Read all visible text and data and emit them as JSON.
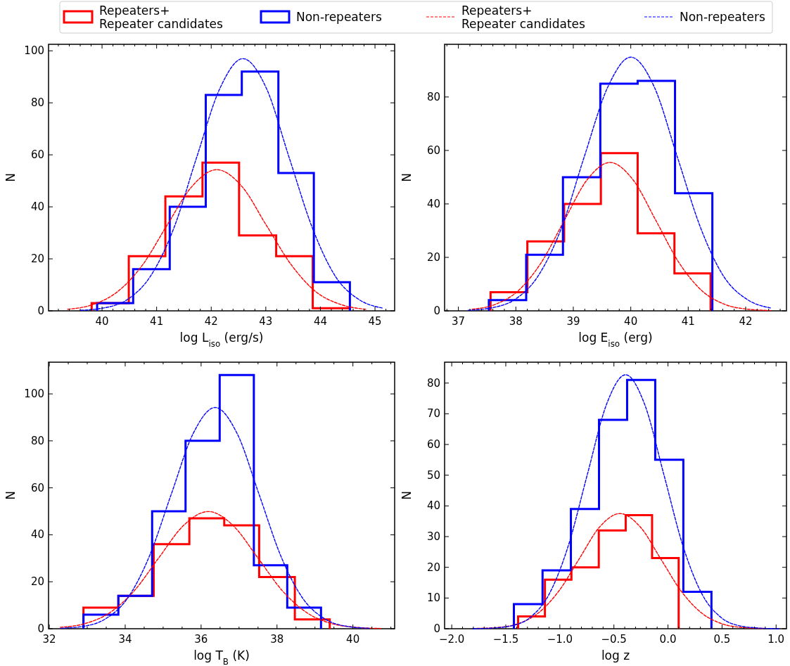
{
  "chart_data": [
    {
      "type": "histogram",
      "xlabel": "log L$_{iso}$ (erg/s)",
      "ylabel": "N",
      "legend": "top",
      "xlim": [
        39.02,
        45.36
      ],
      "ylim": [
        0,
        102.5
      ],
      "xticks": [
        {
          "value": 39.2,
          "label": null
        },
        {
          "value": 39.4,
          "label": null
        },
        {
          "value": 39.6,
          "label": null
        },
        {
          "value": 39.8,
          "label": null
        },
        40,
        {
          "value": 40.2,
          "label": null
        },
        {
          "value": 40.4,
          "label": null
        },
        {
          "value": 40.6,
          "label": null
        },
        {
          "value": 40.8,
          "label": null
        },
        41,
        {
          "value": 41.2,
          "label": null
        },
        {
          "value": 41.4,
          "label": null
        },
        {
          "value": 41.6,
          "label": null
        },
        {
          "value": 41.8,
          "label": null
        },
        42,
        {
          "value": 42.2,
          "label": null
        },
        {
          "value": 42.4,
          "label": null
        },
        {
          "value": 42.6,
          "label": null
        },
        {
          "value": 42.8,
          "label": null
        },
        43,
        {
          "value": 43.2,
          "label": null
        },
        {
          "value": 43.4,
          "label": null
        },
        {
          "value": 43.6,
          "label": null
        },
        {
          "value": 43.8,
          "label": null
        },
        44,
        {
          "value": 44.2,
          "label": null
        },
        {
          "value": 44.4,
          "label": null
        },
        {
          "value": 44.6,
          "label": null
        },
        {
          "value": 44.8,
          "label": null
        },
        45,
        {
          "value": 45.2,
          "label": null
        }
      ],
      "yticks": [
        0,
        20,
        40,
        60,
        80,
        100
      ],
      "series": [
        {
          "type": "histogram",
          "name": "Repeaters+\nRepeater candidates",
          "color": "#ff0000",
          "bins": [
            39.81,
            40.49,
            41.16,
            41.84,
            42.51,
            43.19,
            43.86,
            44.54
          ],
          "values": [
            3,
            21,
            44,
            57,
            29,
            21,
            1
          ]
        },
        {
          "type": "histogram",
          "name": "Non-repeaters",
          "color": "#0000ff",
          "bins": [
            39.91,
            40.57,
            41.24,
            41.9,
            42.56,
            43.23,
            43.88,
            44.54
          ],
          "values": [
            3,
            16,
            40,
            83,
            92,
            53,
            11
          ]
        },
        {
          "type": "line",
          "name": "Repeaters+\nRepeater candidates",
          "color": "#ff0000",
          "line_style": "dashed",
          "x": [
            39.37,
            39.83,
            40.28,
            40.74,
            41.19,
            41.65,
            42.1,
            42.56,
            43.01,
            43.47,
            43.92,
            44.38,
            44.83
          ],
          "values": [
            0.6,
            2.4,
            7.3,
            17.6,
            32.9,
            47.9,
            54.3,
            47.9,
            32.9,
            17.6,
            7.3,
            2.4,
            0.6
          ]
        },
        {
          "type": "line",
          "name": "Non-repeaters",
          "color": "#0000ff",
          "line_style": "dashed",
          "x": [
            39.61,
            40.03,
            40.46,
            40.88,
            41.31,
            41.73,
            42.16,
            42.58,
            43.01,
            43.43,
            43.86,
            44.28,
            44.71,
            45.13
          ],
          "values": [
            0.2,
            1.1,
            4.3,
            13.1,
            31.5,
            58.8,
            85.6,
            97,
            85.6,
            58.8,
            31.5,
            13.1,
            4.3,
            1.1
          ]
        }
      ]
    },
    {
      "type": "histogram",
      "xlabel": "log E$_{iso}$ (erg)",
      "ylabel": "N",
      "xlim": [
        36.76,
        42.71
      ],
      "ylim": [
        0,
        99.7
      ],
      "xticks": [
        {
          "value": 36.8,
          "label": null
        },
        37,
        {
          "value": 37.2,
          "label": null
        },
        {
          "value": 37.4,
          "label": null
        },
        {
          "value": 37.6,
          "label": null
        },
        {
          "value": 37.8,
          "label": null
        },
        38,
        {
          "value": 38.2,
          "label": null
        },
        {
          "value": 38.4,
          "label": null
        },
        {
          "value": 38.6,
          "label": null
        },
        {
          "value": 38.8,
          "label": null
        },
        39,
        {
          "value": 39.2,
          "label": null
        },
        {
          "value": 39.4,
          "label": null
        },
        {
          "value": 39.6,
          "label": null
        },
        {
          "value": 39.8,
          "label": null
        },
        40,
        {
          "value": 40.2,
          "label": null
        },
        {
          "value": 40.4,
          "label": null
        },
        {
          "value": 40.6,
          "label": null
        },
        {
          "value": 40.8,
          "label": null
        },
        41,
        {
          "value": 41.2,
          "label": null
        },
        {
          "value": 41.4,
          "label": null
        },
        {
          "value": 41.6,
          "label": null
        },
        {
          "value": 41.8,
          "label": null
        },
        42,
        {
          "value": 42.2,
          "label": null
        },
        {
          "value": 42.4,
          "label": null
        },
        {
          "value": 42.6,
          "label": null
        }
      ],
      "yticks": [
        0,
        20,
        40,
        60,
        80
      ],
      "series": [
        {
          "type": "histogram",
          "color": "#ff0000",
          "bins": [
            37.56,
            38.2,
            38.84,
            39.48,
            40.12,
            40.76,
            41.39
          ],
          "values": [
            7,
            26,
            40,
            59,
            29,
            14
          ]
        },
        {
          "type": "histogram",
          "color": "#0000ff",
          "bins": [
            37.53,
            38.18,
            38.82,
            39.47,
            40.12,
            40.77,
            41.42
          ],
          "values": [
            4,
            21,
            50,
            85,
            86,
            44
          ]
        },
        {
          "type": "line",
          "color": "#ff0000",
          "line_style": "dashed",
          "x": [
            37.24,
            37.64,
            38.04,
            38.44,
            38.84,
            39.24,
            39.64,
            40.04,
            40.44,
            40.84,
            41.24,
            41.64,
            42.04,
            42.44
          ],
          "values": [
            0.6,
            2.4,
            7.5,
            18,
            33.7,
            49,
            55.5,
            49,
            33.7,
            18,
            7.5,
            2.4,
            0.6,
            0.1
          ]
        },
        {
          "type": "line",
          "color": "#0000ff",
          "line_style": "dashed",
          "x": [
            37.17,
            37.57,
            37.98,
            38.38,
            38.79,
            39.19,
            39.6,
            40,
            40.41,
            40.81,
            41.22,
            41.62,
            42.03,
            42.43
          ],
          "values": [
            0.2,
            1.1,
            4.2,
            12.8,
            30.8,
            57.6,
            83.7,
            94.9,
            83.7,
            57.6,
            30.8,
            12.8,
            4.2,
            1.1
          ]
        }
      ]
    },
    {
      "type": "histogram",
      "xlabel": "log T$_{B}$ (K)",
      "ylabel": "N",
      "xlim": [
        31.98,
        41.1
      ],
      "ylim": [
        0,
        113.5
      ],
      "xticks": [
        32,
        {
          "value": 32.5,
          "label": null
        },
        {
          "value": 33,
          "label": null
        },
        {
          "value": 33.5,
          "label": null
        },
        34,
        {
          "value": 34.5,
          "label": null
        },
        {
          "value": 35,
          "label": null
        },
        {
          "value": 35.5,
          "label": null
        },
        36,
        {
          "value": 36.5,
          "label": null
        },
        {
          "value": 37,
          "label": null
        },
        {
          "value": 37.5,
          "label": null
        },
        38,
        {
          "value": 38.5,
          "label": null
        },
        {
          "value": 39,
          "label": null
        },
        {
          "value": 39.5,
          "label": null
        },
        40,
        {
          "value": 40.5,
          "label": null
        },
        {
          "value": 41,
          "label": null
        }
      ],
      "yticks": [
        0,
        20,
        40,
        60,
        80,
        100
      ],
      "series": [
        {
          "type": "histogram",
          "color": "#ff0000",
          "bins": [
            32.9,
            33.82,
            34.75,
            35.69,
            36.61,
            37.53,
            38.47,
            39.39
          ],
          "values": [
            9,
            14,
            36,
            47,
            44,
            22,
            4
          ]
        },
        {
          "type": "histogram",
          "color": "#0000ff",
          "bins": [
            32.9,
            33.82,
            34.71,
            35.59,
            36.49,
            37.39,
            38.27,
            39.16
          ],
          "values": [
            6,
            14,
            50,
            80,
            108,
            27,
            9
          ]
        },
        {
          "type": "line",
          "color": "#ff0000",
          "line_style": "dashed",
          "x": [
            32.29,
            32.94,
            33.59,
            34.24,
            34.89,
            35.54,
            36.19,
            36.84,
            37.49,
            38.14,
            38.79,
            39.44,
            40.09,
            40.74
          ],
          "values": [
            0.6,
            2.2,
            6.8,
            16.2,
            30.3,
            44,
            49.9,
            44,
            30.3,
            16.2,
            6.8,
            2.2,
            0.6,
            0.1
          ]
        },
        {
          "type": "line",
          "color": "#0000ff",
          "line_style": "dashed",
          "x": [
            32.31,
            32.89,
            33.47,
            34.05,
            34.63,
            35.21,
            35.79,
            36.37,
            36.95,
            37.53,
            38.11,
            38.69,
            39.27,
            39.85,
            40.43
          ],
          "values": [
            0.2,
            1,
            4.1,
            12.7,
            30.6,
            57.1,
            83.1,
            94.2,
            83.1,
            57.1,
            30.6,
            12.7,
            4.1,
            1,
            0.2
          ]
        }
      ]
    },
    {
      "type": "histogram",
      "xlabel": "log z",
      "ylabel": "N",
      "xlim": [
        -2.066,
        1.096
      ],
      "ylim": [
        0,
        86.8
      ],
      "xticks": [
        {
          "value": -2,
          "label": "−2.0"
        },
        {
          "value": -1.9,
          "label": null
        },
        {
          "value": -1.8,
          "label": null
        },
        {
          "value": -1.7,
          "label": null
        },
        {
          "value": -1.6,
          "label": null
        },
        {
          "value": -1.5,
          "label": "−1.5"
        },
        {
          "value": -1.4,
          "label": null
        },
        {
          "value": -1.3,
          "label": null
        },
        {
          "value": -1.2,
          "label": null
        },
        {
          "value": -1.1,
          "label": null
        },
        {
          "value": -1,
          "label": "−1.0"
        },
        {
          "value": -0.9,
          "label": null
        },
        {
          "value": -0.8,
          "label": null
        },
        {
          "value": -0.7,
          "label": null
        },
        {
          "value": -0.6,
          "label": null
        },
        {
          "value": -0.5,
          "label": "−0.5"
        },
        {
          "value": -0.4,
          "label": null
        },
        {
          "value": -0.3,
          "label": null
        },
        {
          "value": -0.2,
          "label": null
        },
        {
          "value": -0.1,
          "label": null
        },
        {
          "value": 0,
          "label": "0.0"
        },
        {
          "value": 0.1,
          "label": null
        },
        {
          "value": 0.2,
          "label": null
        },
        {
          "value": 0.3,
          "label": null
        },
        {
          "value": 0.4,
          "label": null
        },
        0.5,
        {
          "value": 0.6,
          "label": null
        },
        {
          "value": 0.7,
          "label": null
        },
        {
          "value": 0.8,
          "label": null
        },
        {
          "value": 0.9,
          "label": null
        },
        {
          "value": 1,
          "label": "1.0"
        }
      ],
      "yticks": [
        0,
        10,
        20,
        30,
        40,
        50,
        60,
        70,
        80
      ],
      "series": [
        {
          "type": "histogram",
          "color": "#ff0000",
          "bins": [
            -1.386,
            -1.138,
            -0.893,
            -0.64,
            -0.391,
            -0.147,
            0.099
          ],
          "values": [
            4,
            16,
            20,
            32,
            37,
            23
          ]
        },
        {
          "type": "histogram",
          "color": "#0000ff",
          "bins": [
            -1.425,
            -1.16,
            -0.898,
            -0.638,
            -0.378,
            -0.118,
            0.142,
            0.402
          ],
          "values": [
            8,
            19,
            39,
            68,
            81,
            55,
            12
          ]
        },
        {
          "type": "line",
          "color": "#ff0000",
          "line_style": "dashed",
          "x": [
            -1.767,
            -1.578,
            -1.389,
            -1.2,
            -1.011,
            -0.822,
            -0.633,
            -0.444,
            -0.255,
            -0.066,
            0.123,
            0.312,
            0.501,
            0.69,
            0.879
          ],
          "values": [
            0.1,
            0.4,
            1.6,
            5.1,
            12.2,
            22.7,
            33.1,
            37.5,
            33.1,
            22.7,
            12.2,
            5.1,
            1.6,
            0.4,
            0.1
          ]
        },
        {
          "type": "line",
          "color": "#0000ff",
          "line_style": "dashed",
          "x": [
            -1.808,
            -1.631,
            -1.454,
            -1.277,
            -1.1,
            -0.923,
            -0.746,
            -0.569,
            -0.392,
            -0.215,
            -0.038,
            0.139,
            0.316,
            0.493,
            0.67,
            0.847,
            1.024
          ],
          "values": [
            0,
            0.2,
            0.9,
            3.6,
            11.2,
            26.9,
            50.2,
            73,
            82.7,
            73,
            50.2,
            26.9,
            11.2,
            3.6,
            0.9,
            0.2,
            0
          ]
        }
      ]
    }
  ]
}
